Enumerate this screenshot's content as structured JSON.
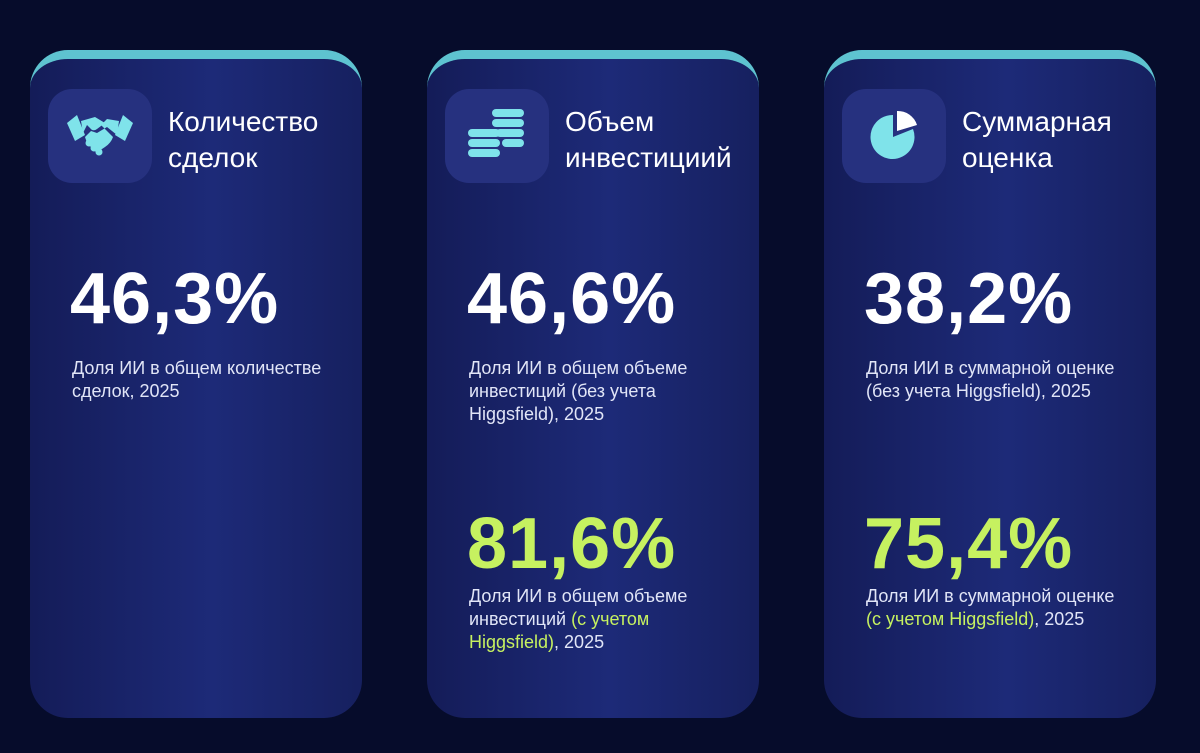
{
  "cards": [
    {
      "title": "Количество сделок",
      "stats": [
        {
          "value": "46,3%",
          "description": {
            "before": "Доля ИИ в общем количестве сделок, 2025"
          }
        }
      ]
    },
    {
      "title": "Объем инвестициий",
      "stats": [
        {
          "value": "46,6%",
          "description": {
            "before": "Доля ИИ в общем объеме инвестиций (без учета Higgsfield), 2025"
          }
        },
        {
          "value": "81,6%",
          "description": {
            "before": "Доля ИИ в общем объеме инвестиций ",
            "accent": "(с учетом Higgsfield)",
            "after": ", 2025"
          }
        }
      ]
    },
    {
      "title": "Суммарная оценка",
      "stats": [
        {
          "value": "38,2%",
          "description": {
            "before": "Доля ИИ в суммарной оценке (без учета Higgsfield), 2025"
          }
        },
        {
          "value": "75,4%",
          "description": {
            "before": "Доля ИИ в суммарной оценке ",
            "accent": "(с учетом Higgsfield)",
            "after": ", 2025"
          }
        }
      ]
    }
  ]
}
